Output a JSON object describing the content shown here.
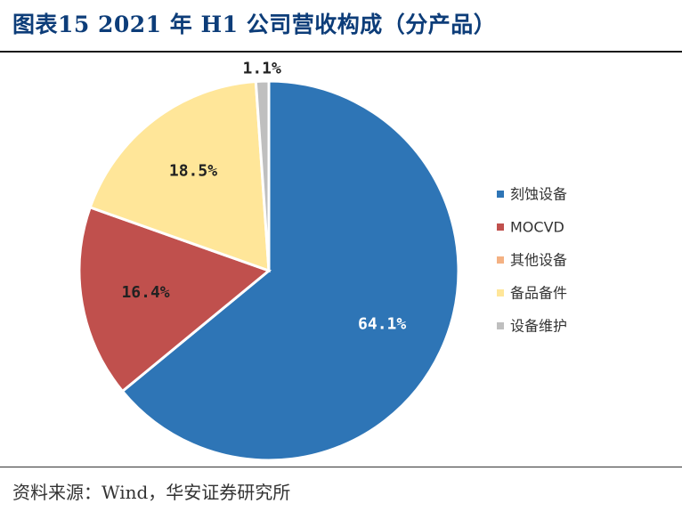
{
  "header": {
    "title": "图表15   2021 年 H1 公司营收构成（分产品）"
  },
  "footer": {
    "source": "资料来源：Wind，华安证券研究所"
  },
  "chart_data": {
    "type": "pie",
    "title": "",
    "legend_position": "right",
    "slices": [
      {
        "name": "刻蚀设备",
        "value": 64.1,
        "label": "64.1%",
        "color": "#2e75b6"
      },
      {
        "name": "MOCVD",
        "value": 16.4,
        "label": "16.4%",
        "color": "#c0504d"
      },
      {
        "name": "其他设备",
        "value": 0.0,
        "label": "",
        "color": "#f4b183"
      },
      {
        "name": "备品备件",
        "value": 18.5,
        "label": "18.5%",
        "color": "#ffe699"
      },
      {
        "name": "设备维护",
        "value": 1.1,
        "label": "1.1%",
        "color": "#bfbfbf"
      }
    ]
  }
}
